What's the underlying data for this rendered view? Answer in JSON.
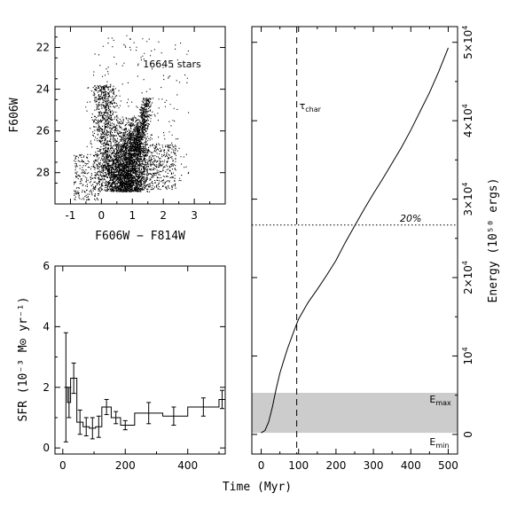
{
  "chart_data": [
    {
      "type": "scatter",
      "panel": "color-magnitude-diagram",
      "xlabel": "F606W − F814W",
      "ylabel": "F606W",
      "xlim": [
        -1.5,
        4
      ],
      "ylim": [
        29.5,
        21
      ],
      "y_inverted": true,
      "xticks": [
        -1,
        0,
        1,
        2,
        3
      ],
      "yticks": [
        22,
        24,
        26,
        28
      ],
      "annotation": "16645 stars",
      "star_count": 16645,
      "point_color": "#000000"
    },
    {
      "type": "line",
      "panel": "star-formation-history",
      "step": true,
      "xlabel": "Time (Myr)",
      "ylabel": "SFR (10⁻³ M⊙ yr⁻¹)",
      "xlim": [
        -25,
        520
      ],
      "ylim": [
        -0.2,
        6
      ],
      "xticks": [
        0,
        200,
        400
      ],
      "yticks": [
        0,
        2,
        4,
        6
      ],
      "bins": [
        {
          "x0": 5,
          "x1": 15,
          "y": 2.0,
          "err": 1.8,
          "xc": 10
        },
        {
          "x0": 15,
          "x1": 25,
          "y": 1.5,
          "err": 0.5,
          "xc": 20
        },
        {
          "x0": 25,
          "x1": 45,
          "y": 2.3,
          "err": 0.5,
          "xc": 35
        },
        {
          "x0": 45,
          "x1": 65,
          "y": 0.85,
          "err": 0.4,
          "xc": 55
        },
        {
          "x0": 65,
          "x1": 85,
          "y": 0.7,
          "err": 0.3,
          "xc": 75
        },
        {
          "x0": 85,
          "x1": 105,
          "y": 0.65,
          "err": 0.35,
          "xc": 95
        },
        {
          "x0": 105,
          "x1": 125,
          "y": 0.7,
          "err": 0.35,
          "xc": 115
        },
        {
          "x0": 125,
          "x1": 155,
          "y": 1.35,
          "err": 0.25,
          "xc": 140
        },
        {
          "x0": 155,
          "x1": 185,
          "y": 1.0,
          "err": 0.2,
          "xc": 170
        },
        {
          "x0": 185,
          "x1": 230,
          "y": 0.75,
          "err": 0.15,
          "xc": 200
        },
        {
          "x0": 230,
          "x1": 320,
          "y": 1.15,
          "err": 0.35,
          "xc": 275
        },
        {
          "x0": 320,
          "x1": 400,
          "y": 1.05,
          "err": 0.3,
          "xc": 355
        },
        {
          "x0": 400,
          "x1": 500,
          "y": 1.35,
          "err": 0.3,
          "xc": 450
        },
        {
          "x0": 500,
          "x1": 520,
          "y": 1.6,
          "err": 0.3,
          "xc": 510
        }
      ]
    },
    {
      "type": "line",
      "panel": "cumulative-energy",
      "xlabel": "Time (Myr)",
      "ylabel": "Energy (10⁵⁰ ergs)",
      "y_axis_side": "right",
      "xlim": [
        -25,
        525
      ],
      "ylim": [
        -2500,
        52000
      ],
      "xticks": [
        0,
        100,
        200,
        300,
        400,
        500
      ],
      "ytick_values": [
        0,
        10000,
        20000,
        30000,
        40000,
        50000
      ],
      "ytick_labels": [
        {
          "base": "0",
          "exp": ""
        },
        {
          "base": "10",
          "exp": "4"
        },
        {
          "base": "2×10",
          "exp": "4"
        },
        {
          "base": "3×10",
          "exp": "4"
        },
        {
          "base": "4×10",
          "exp": "4"
        },
        {
          "base": "5×10",
          "exp": "4"
        }
      ],
      "series": [
        {
          "x": [
            0,
            10,
            20,
            30,
            40,
            50,
            60,
            70,
            80,
            90,
            100,
            125,
            150,
            175,
            200,
            225,
            250,
            275,
            300,
            325,
            350,
            375,
            400,
            425,
            450,
            475,
            500
          ],
          "y": [
            200,
            500,
            1600,
            3500,
            5800,
            7800,
            9400,
            10900,
            12200,
            13500,
            14700,
            16800,
            18500,
            20300,
            22200,
            24500,
            26600,
            28700,
            30700,
            32600,
            34600,
            36600,
            38800,
            41200,
            43600,
            46300,
            49300
          ]
        }
      ],
      "tau_char": {
        "x": 95,
        "label": "τ",
        "sub": "char"
      },
      "threshold": {
        "y": 26700,
        "label": "20%"
      },
      "energy_band": {
        "ymin": 200,
        "ymax": 5300,
        "color": "#cccccc",
        "label_max": {
          "base": "E",
          "sub": "max"
        },
        "label_min": {
          "base": "E",
          "sub": "min"
        }
      }
    }
  ]
}
